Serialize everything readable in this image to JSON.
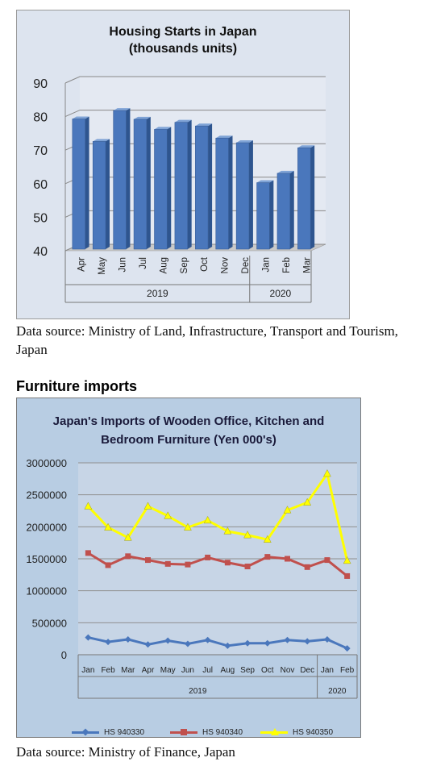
{
  "chart_data": [
    {
      "type": "bar",
      "title": "Housing Starts in Japan",
      "subtitle": "(thousands units)",
      "categories": [
        "Apr",
        "May",
        "Jun",
        "Jul",
        "Aug",
        "Sep",
        "Oct",
        "Nov",
        "Dec",
        "Jan",
        "Feb",
        "Mar"
      ],
      "groups": [
        {
          "label": "2019",
          "count": 9
        },
        {
          "label": "2020",
          "count": 3
        }
      ],
      "values": [
        79.3,
        72.6,
        81.8,
        79.2,
        76.2,
        78.3,
        77.2,
        73.6,
        72.2,
        60.3,
        63.1,
        70.7
      ],
      "ylim": [
        40,
        90
      ],
      "yticks": [
        40,
        50,
        60,
        70,
        80,
        90
      ],
      "grid": true,
      "bar_color": "#4a77bc"
    },
    {
      "type": "line",
      "title_line1": "Japan's Imports of  Wooden  Office, Kitchen and",
      "title_line2": "Bedroom Furniture (Yen 000's)",
      "categories": [
        "Jan",
        "Feb",
        "Mar",
        "Apr",
        "May",
        "Jun",
        "Jul",
        "Aug",
        "Sep",
        "Oct",
        "Nov",
        "Dec",
        "Jan",
        "Feb"
      ],
      "groups": [
        {
          "label": "2019",
          "count": 12
        },
        {
          "label": "2020",
          "count": 2
        }
      ],
      "ylim": [
        0,
        3000000
      ],
      "yticks": [
        "0",
        "500000",
        "1000000",
        "1500000",
        "2000000",
        "2500000",
        "3000000"
      ],
      "grid": true,
      "legend_position": "bottom",
      "series": [
        {
          "name": "HS 940330",
          "color": "#4a77bc",
          "marker": "diamond",
          "values": [
            270000,
            200000,
            240000,
            160000,
            220000,
            170000,
            230000,
            140000,
            180000,
            180000,
            230000,
            210000,
            240000,
            100000
          ]
        },
        {
          "name": "HS 940340",
          "color": "#c0504d",
          "marker": "square",
          "values": [
            1590000,
            1400000,
            1540000,
            1480000,
            1420000,
            1410000,
            1520000,
            1440000,
            1380000,
            1530000,
            1500000,
            1370000,
            1480000,
            1230000
          ]
        },
        {
          "name": "HS 940350",
          "color": "#ffff00",
          "marker": "triangle",
          "values": [
            2320000,
            1990000,
            1830000,
            2320000,
            2170000,
            1990000,
            2100000,
            1930000,
            1870000,
            1800000,
            2260000,
            2380000,
            2830000,
            1470000
          ]
        }
      ]
    }
  ],
  "page": {
    "source1": "Data source: Ministry of Land, Infrastructure, Transport and Tourism, Japan",
    "section_heading": "Furniture imports",
    "source2": "Data source: Ministry of Finance, Japan"
  }
}
